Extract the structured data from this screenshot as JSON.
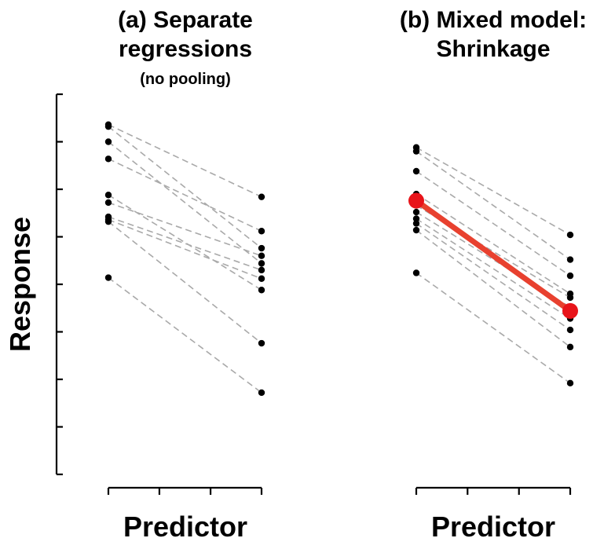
{
  "chart_data": [
    {
      "type": "line",
      "title_lines": [
        "(a) Separate",
        "regressions"
      ],
      "subtitle": "(no pooling)",
      "xlabel": "Predictor",
      "x": [
        0,
        1
      ],
      "series": [
        {
          "values": [
            3.68,
            2.92
          ]
        },
        {
          "values": [
            3.66,
            2.38
          ]
        },
        {
          "values": [
            3.5,
            2.22
          ]
        },
        {
          "values": [
            3.32,
            2.56
          ]
        },
        {
          "values": [
            2.94,
            1.94
          ]
        },
        {
          "values": [
            2.86,
            2.3
          ]
        },
        {
          "values": [
            2.71,
            2.15
          ]
        },
        {
          "values": [
            2.68,
            2.06
          ]
        },
        {
          "values": [
            2.66,
            1.38
          ]
        },
        {
          "values": [
            2.07,
            0.86
          ]
        }
      ]
    },
    {
      "type": "line",
      "title_lines": [
        "(b) Mixed model:",
        "Shrinkage"
      ],
      "subtitle": "",
      "xlabel": "Predictor",
      "x": [
        0,
        1
      ],
      "series": [
        {
          "values": [
            3.44,
            2.52
          ]
        },
        {
          "values": [
            3.4,
            2.26
          ]
        },
        {
          "values": [
            3.19,
            2.09
          ]
        },
        {
          "values": [
            2.95,
            1.9
          ]
        },
        {
          "values": [
            2.83,
            1.86
          ]
        },
        {
          "values": [
            2.76,
            1.76
          ]
        },
        {
          "values": [
            2.69,
            1.64
          ]
        },
        {
          "values": [
            2.64,
            1.52
          ]
        },
        {
          "values": [
            2.57,
            1.34
          ]
        },
        {
          "values": [
            2.12,
            0.96
          ]
        }
      ],
      "mean": {
        "values": [
          2.88,
          1.72
        ],
        "color": "#e8412f"
      }
    }
  ],
  "shared": {
    "ylabel": "Response",
    "ylim": [
      0,
      4.0
    ],
    "y_ticks": [
      0,
      0.5,
      1.0,
      1.5,
      2.0,
      2.5,
      3.0,
      3.5,
      4.0
    ],
    "x_ticks": [
      0,
      0.333,
      0.667,
      1
    ],
    "point_color": "#000000",
    "link_color": "#a9a9a9"
  }
}
